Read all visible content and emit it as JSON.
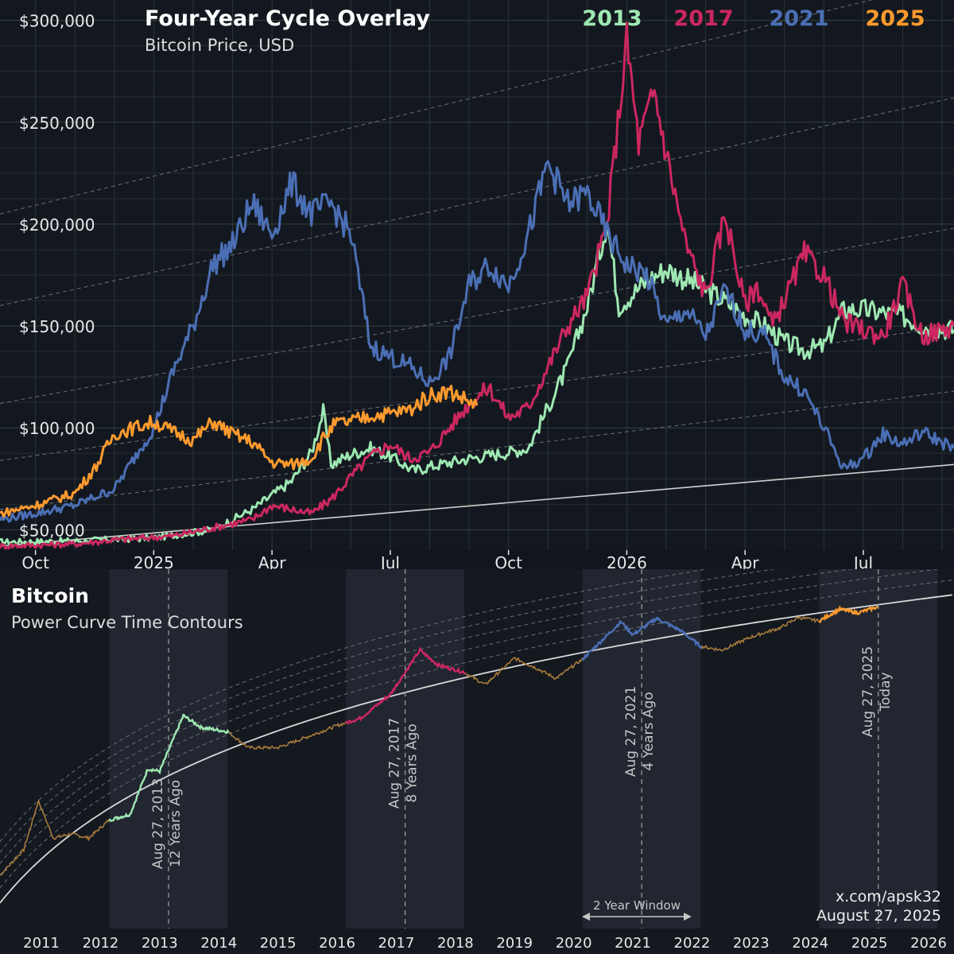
{
  "top": {
    "title": "Four-Year Cycle Overlay",
    "subtitle": "Bitcoin Price, USD",
    "legend": [
      {
        "label": "2013",
        "color": "#9ee8b2"
      },
      {
        "label": "2017",
        "color": "#cc2760"
      },
      {
        "label": "2021",
        "color": "#4b6fb5"
      },
      {
        "label": "2025",
        "color": "#ff9a2e"
      }
    ]
  },
  "bottom": {
    "title": "Bitcoin",
    "subtitle": "Power Curve Time Contours",
    "markers": [
      {
        "date": "Aug 27, 2013",
        "ago": "12 Years Ago"
      },
      {
        "date": "Aug 27, 2017",
        "ago": "8 Years Ago"
      },
      {
        "date": "Aug 27, 2021",
        "ago": "4 Years Ago"
      },
      {
        "date": "Aug 27, 2025",
        "ago": "Today"
      }
    ],
    "window_label": "2 Year Window",
    "credit": {
      "handle": "x.com/apsk32",
      "date": "August 27, 2025"
    }
  },
  "chart_data": [
    {
      "type": "line",
      "title": "Four-Year Cycle Overlay",
      "subtitle": "Bitcoin Price, USD",
      "x_ticks": [
        "Oct",
        "2025",
        "Apr",
        "Jul",
        "Oct",
        "2026",
        "Apr",
        "Jul"
      ],
      "x_tick_months": [
        0,
        3,
        6,
        9,
        12,
        15,
        18,
        21
      ],
      "x_range_months": [
        -0.9,
        23.3
      ],
      "y_ticks": [
        "$50,000",
        "$100,000",
        "$150,000",
        "$200,000",
        "$250,000",
        "$300,000"
      ],
      "y_tick_values": [
        50000,
        100000,
        150000,
        200000,
        250000,
        300000
      ],
      "ylim": [
        40000,
        310000
      ],
      "grid": true,
      "legend_position": "top-right",
      "series": [
        {
          "name": "2013",
          "color": "#9ee8b2",
          "points": [
            [
              -0.9,
              44000
            ],
            [
              1,
              44500
            ],
            [
              3,
              46000
            ],
            [
              4.5,
              50000
            ],
            [
              5.5,
              60000
            ],
            [
              6.5,
              74000
            ],
            [
              7,
              88000
            ],
            [
              7.3,
              108000
            ],
            [
              7.5,
              82000
            ],
            [
              8,
              87000
            ],
            [
              8.5,
              90000
            ],
            [
              9,
              86000
            ],
            [
              9.6,
              79000
            ],
            [
              10,
              81000
            ],
            [
              11,
              85000
            ],
            [
              12,
              88000
            ],
            [
              12.5,
              90000
            ],
            [
              13,
              110000
            ],
            [
              13.5,
              130000
            ],
            [
              14,
              160000
            ],
            [
              14.5,
              202000
            ],
            [
              14.8,
              160000
            ],
            [
              15.5,
              172000
            ],
            [
              16,
              178000
            ],
            [
              17,
              168000
            ],
            [
              17.5,
              162000
            ],
            [
              18,
              155000
            ],
            [
              18.5,
              150000
            ],
            [
              19,
              142000
            ],
            [
              19.5,
              138000
            ],
            [
              20,
              140000
            ],
            [
              20.5,
              158000
            ],
            [
              21,
              158000
            ],
            [
              22,
              155000
            ],
            [
              22.5,
              150000
            ],
            [
              23.3,
              148000
            ]
          ]
        },
        {
          "name": "2017",
          "color": "#cc2760",
          "points": [
            [
              -0.9,
              42000
            ],
            [
              1,
              43000
            ],
            [
              2,
              45000
            ],
            [
              3.5,
              47000
            ],
            [
              4.5,
              51000
            ],
            [
              5.5,
              55000
            ],
            [
              6,
              62000
            ],
            [
              7,
              58000
            ],
            [
              7.5,
              65000
            ],
            [
              8,
              76000
            ],
            [
              8.5,
              86000
            ],
            [
              9,
              92000
            ],
            [
              9.5,
              85000
            ],
            [
              10,
              88000
            ],
            [
              10.5,
              100000
            ],
            [
              11,
              112000
            ],
            [
              11.5,
              120000
            ],
            [
              12,
              105000
            ],
            [
              12.5,
              110000
            ],
            [
              13,
              130000
            ],
            [
              13.5,
              150000
            ],
            [
              14,
              165000
            ],
            [
              14.5,
              200000
            ],
            [
              15,
              290000
            ],
            [
              15.3,
              240000
            ],
            [
              15.7,
              265000
            ],
            [
              16,
              235000
            ],
            [
              16.5,
              190000
            ],
            [
              17,
              165000
            ],
            [
              17.5,
              205000
            ],
            [
              18,
              160000
            ],
            [
              18.3,
              170000
            ],
            [
              18.7,
              150000
            ],
            [
              19.5,
              185000
            ],
            [
              20,
              175000
            ],
            [
              20.5,
              152000
            ],
            [
              21,
              148000
            ],
            [
              21.5,
              145000
            ],
            [
              22,
              170000
            ],
            [
              22.5,
              145000
            ],
            [
              23.3,
              150000
            ]
          ]
        },
        {
          "name": "2021",
          "color": "#4b6fb5",
          "points": [
            [
              -0.9,
              55000
            ],
            [
              0,
              58000
            ],
            [
              1,
              62000
            ],
            [
              2,
              70000
            ],
            [
              3,
              100000
            ],
            [
              3.5,
              128000
            ],
            [
              4,
              150000
            ],
            [
              4.5,
              180000
            ],
            [
              5,
              190000
            ],
            [
              5.5,
              210000
            ],
            [
              6,
              195000
            ],
            [
              6.5,
              220000
            ],
            [
              7,
              205000
            ],
            [
              7.5,
              210000
            ],
            [
              8,
              195000
            ],
            [
              8.5,
              140000
            ],
            [
              9,
              135000
            ],
            [
              9.5,
              130000
            ],
            [
              10,
              122000
            ],
            [
              10.5,
              135000
            ],
            [
              11,
              170000
            ],
            [
              11.5,
              180000
            ],
            [
              12,
              170000
            ],
            [
              12.5,
              195000
            ],
            [
              13,
              230000
            ],
            [
              13.5,
              210000
            ],
            [
              14,
              215000
            ],
            [
              14.5,
              195000
            ],
            [
              15,
              180000
            ],
            [
              15.5,
              175000
            ],
            [
              16,
              150000
            ],
            [
              16.5,
              158000
            ],
            [
              17,
              145000
            ],
            [
              17.5,
              168000
            ],
            [
              18,
              148000
            ],
            [
              18.5,
              145000
            ],
            [
              19,
              125000
            ],
            [
              19.5,
              118000
            ],
            [
              20,
              100000
            ],
            [
              20.5,
              80000
            ],
            [
              21,
              85000
            ],
            [
              21.5,
              97000
            ],
            [
              22,
              92000
            ],
            [
              22.5,
              98000
            ],
            [
              23.3,
              90000
            ]
          ]
        },
        {
          "name": "2025",
          "color": "#ff9a2e",
          "points": [
            [
              -0.9,
              58000
            ],
            [
              0,
              62000
            ],
            [
              1,
              68000
            ],
            [
              1.5,
              80000
            ],
            [
              2,
              97000
            ],
            [
              2.5,
              100000
            ],
            [
              3,
              103000
            ],
            [
              3.5,
              98000
            ],
            [
              4,
              94000
            ],
            [
              4.5,
              103000
            ],
            [
              5,
              97000
            ],
            [
              5.5,
              93000
            ],
            [
              6,
              83000
            ],
            [
              6.5,
              82000
            ],
            [
              7,
              85000
            ],
            [
              7.3,
              95000
            ],
            [
              7.6,
              102000
            ],
            [
              8,
              103000
            ],
            [
              8.5,
              106000
            ],
            [
              9,
              107000
            ],
            [
              9.5,
              109000
            ],
            [
              10,
              116000
            ],
            [
              10.5,
              118000
            ],
            [
              11,
              113000
            ],
            [
              11.2,
              111000
            ]
          ]
        }
      ]
    },
    {
      "type": "line",
      "title": "Bitcoin",
      "subtitle": "Power Curve Time Contours",
      "x_ticks": [
        "2011",
        "2012",
        "2013",
        "2014",
        "2015",
        "2016",
        "2017",
        "2018",
        "2019",
        "2020",
        "2021",
        "2022",
        "2023",
        "2024",
        "2025",
        "2026"
      ],
      "x_range_years": [
        2010.8,
        2026.93
      ],
      "y_scale": "log",
      "highlight_windows": [
        [
          2012.65,
          2014.65
        ],
        [
          2016.65,
          2018.65
        ],
        [
          2020.65,
          2022.65
        ],
        [
          2024.65,
          2026.65
        ]
      ],
      "series": [
        {
          "name": "price",
          "color": "#a77a3c",
          "points": [
            [
              2010.8,
              1
            ],
            [
              2011.2,
              3
            ],
            [
              2011.45,
              25
            ],
            [
              2011.7,
              5
            ],
            [
              2012,
              6
            ],
            [
              2012.3,
              5
            ],
            [
              2012.65,
              11
            ],
            [
              2013,
              14
            ],
            [
              2013.3,
              100
            ],
            [
              2013.5,
              90
            ],
            [
              2013.9,
              1000
            ],
            [
              2014.2,
              600
            ],
            [
              2014.65,
              500
            ],
            [
              2015,
              250
            ],
            [
              2015.5,
              250
            ],
            [
              2016,
              400
            ],
            [
              2016.5,
              650
            ],
            [
              2016.9,
              900
            ],
            [
              2017.4,
              2500
            ],
            [
              2017.9,
              17000
            ],
            [
              2018.2,
              9000
            ],
            [
              2018.65,
              6500
            ],
            [
              2019,
              3800
            ],
            [
              2019.5,
              12000
            ],
            [
              2019.9,
              7500
            ],
            [
              2020.2,
              5000
            ],
            [
              2020.65,
              11500
            ],
            [
              2021.3,
              58000
            ],
            [
              2021.5,
              33000
            ],
            [
              2021.9,
              67000
            ],
            [
              2022.3,
              40000
            ],
            [
              2022.65,
              20000
            ],
            [
              2023,
              17000
            ],
            [
              2023.5,
              30000
            ],
            [
              2024,
              45000
            ],
            [
              2024.3,
              70000
            ],
            [
              2024.65,
              60000
            ],
            [
              2025,
              100000
            ],
            [
              2025.3,
              85000
            ],
            [
              2025.65,
              111000
            ]
          ]
        },
        {
          "name": "power curve",
          "color": "#d8d8d8",
          "points": []
        }
      ]
    }
  ]
}
